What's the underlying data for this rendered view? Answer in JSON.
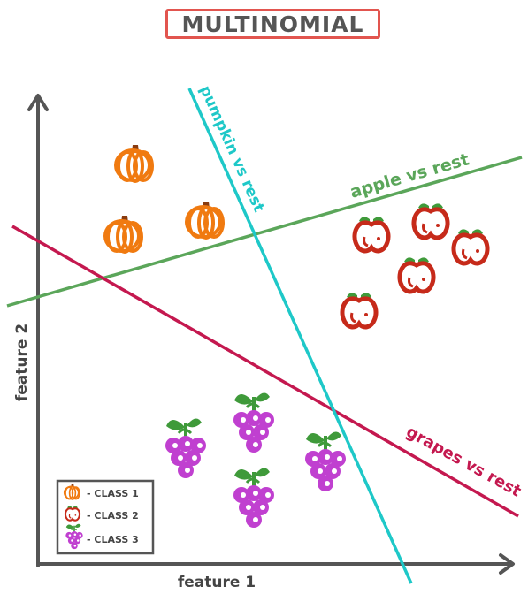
{
  "title": "MULTINOMIAL",
  "axes": {
    "x_label": "feature 1",
    "y_label": "feature 2"
  },
  "lines": {
    "pumpkin": {
      "label": "pumpkin vs rest",
      "color": "#1ec8c8"
    },
    "apple": {
      "label": "apple vs rest",
      "color": "#5ba65a"
    },
    "grapes": {
      "label": "grapes vs rest",
      "color": "#c4184f"
    }
  },
  "legend": {
    "items": [
      {
        "icon": "pumpkin-icon",
        "label": "- CLASS 1"
      },
      {
        "icon": "apple-icon",
        "label": "- CLASS 2"
      },
      {
        "icon": "grapes-icon",
        "label": "- CLASS 3"
      }
    ]
  },
  "colors": {
    "pumpkin": "#f07a10",
    "apple": "#c62a1a",
    "grapes": "#c040d0",
    "leaf": "#3f9a3a",
    "axis": "#555555"
  }
}
